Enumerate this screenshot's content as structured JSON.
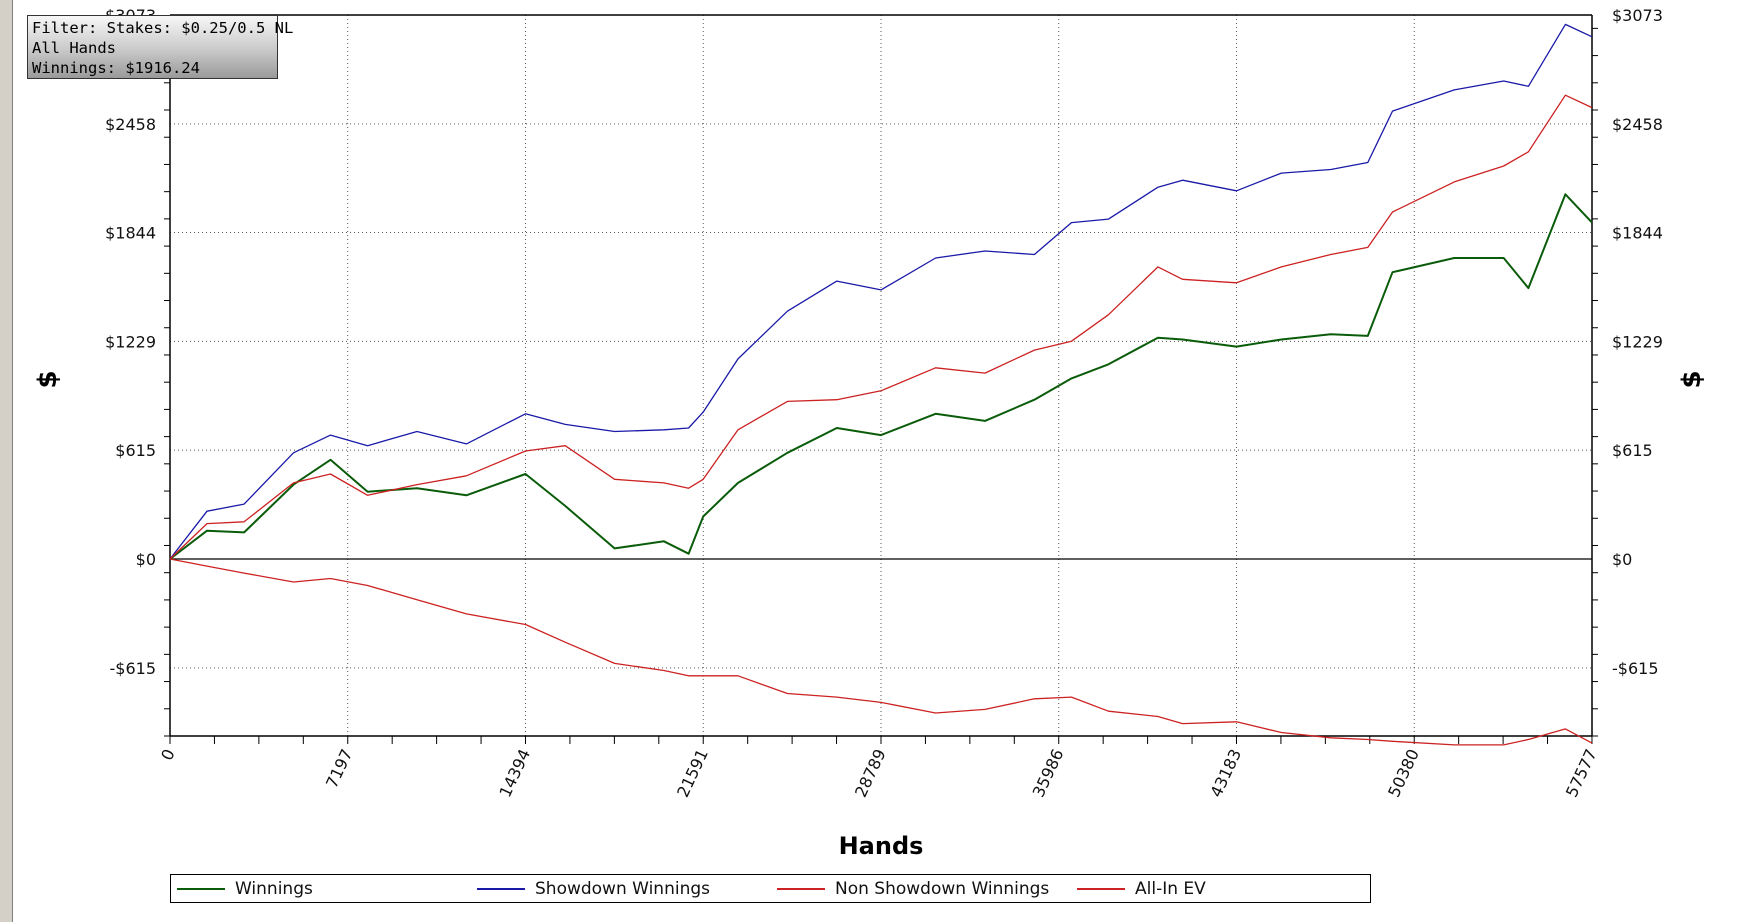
{
  "filter": {
    "line1": "Filter: Stakes: $0.25/0.5 NL",
    "line2": "All Hands",
    "line3": "Winnings: $1916.24"
  },
  "chart_data": {
    "type": "line",
    "xlabel": "Hands",
    "ylabel": "$",
    "xlim": [
      0,
      57577
    ],
    "ylim": [
      -1000,
      3073
    ],
    "x_ticks": [
      0,
      7197,
      14394,
      21591,
      28789,
      35986,
      43183,
      50380,
      57577
    ],
    "y_ticks": [
      -615,
      0,
      615,
      1229,
      1844,
      2458,
      3073
    ],
    "y_tick_labels": [
      "-$615",
      "$0",
      "$615",
      "$1229",
      "$1844",
      "$2458",
      "$3073"
    ],
    "grid": true,
    "legend_position": "bottom",
    "x": [
      0,
      1500,
      3000,
      5000,
      6500,
      8000,
      10000,
      12000,
      14394,
      16000,
      18000,
      20000,
      21000,
      21591,
      23000,
      25000,
      27000,
      28789,
      31000,
      33000,
      35000,
      36500,
      38000,
      40000,
      41000,
      43183,
      45000,
      47000,
      48500,
      49500,
      52000,
      54000,
      55000,
      56500,
      57577
    ],
    "series": [
      {
        "name": "Winnings",
        "color": "#0a5c0a",
        "values": [
          0,
          160,
          150,
          420,
          560,
          380,
          400,
          360,
          480,
          300,
          60,
          100,
          30,
          240,
          430,
          600,
          740,
          700,
          820,
          780,
          900,
          1020,
          1100,
          1250,
          1240,
          1200,
          1240,
          1270,
          1260,
          1620,
          1700,
          1700,
          1530,
          2060,
          1900
        ]
      },
      {
        "name": "Showdown Winnings",
        "color": "#1a1aa8",
        "values": [
          0,
          270,
          310,
          600,
          700,
          640,
          720,
          650,
          820,
          760,
          720,
          730,
          740,
          830,
          1130,
          1400,
          1570,
          1520,
          1700,
          1740,
          1720,
          1900,
          1920,
          2100,
          2140,
          2080,
          2180,
          2200,
          2240,
          2530,
          2650,
          2700,
          2670,
          3020,
          2950
        ]
      },
      {
        "name": "Non Showdown Winnings",
        "color": "#cc2222",
        "values": [
          0,
          200,
          210,
          430,
          480,
          360,
          420,
          470,
          610,
          640,
          450,
          430,
          400,
          450,
          730,
          890,
          900,
          950,
          1080,
          1050,
          1180,
          1230,
          1380,
          1650,
          1580,
          1560,
          1650,
          1720,
          1760,
          1960,
          2130,
          2220,
          2300,
          2620,
          2550
        ]
      },
      {
        "name": "All-In EV",
        "color": "#cc2222",
        "values": [
          0,
          -40,
          -80,
          -130,
          -110,
          -150,
          -230,
          -310,
          -370,
          -470,
          -590,
          -630,
          -660,
          -660,
          -660,
          -760,
          -780,
          -810,
          -870,
          -850,
          -790,
          -780,
          -860,
          -890,
          -930,
          -920,
          -980,
          -1010,
          -1020,
          -1030,
          -1050,
          -1050,
          -1020,
          -960,
          -1040
        ]
      }
    ]
  }
}
